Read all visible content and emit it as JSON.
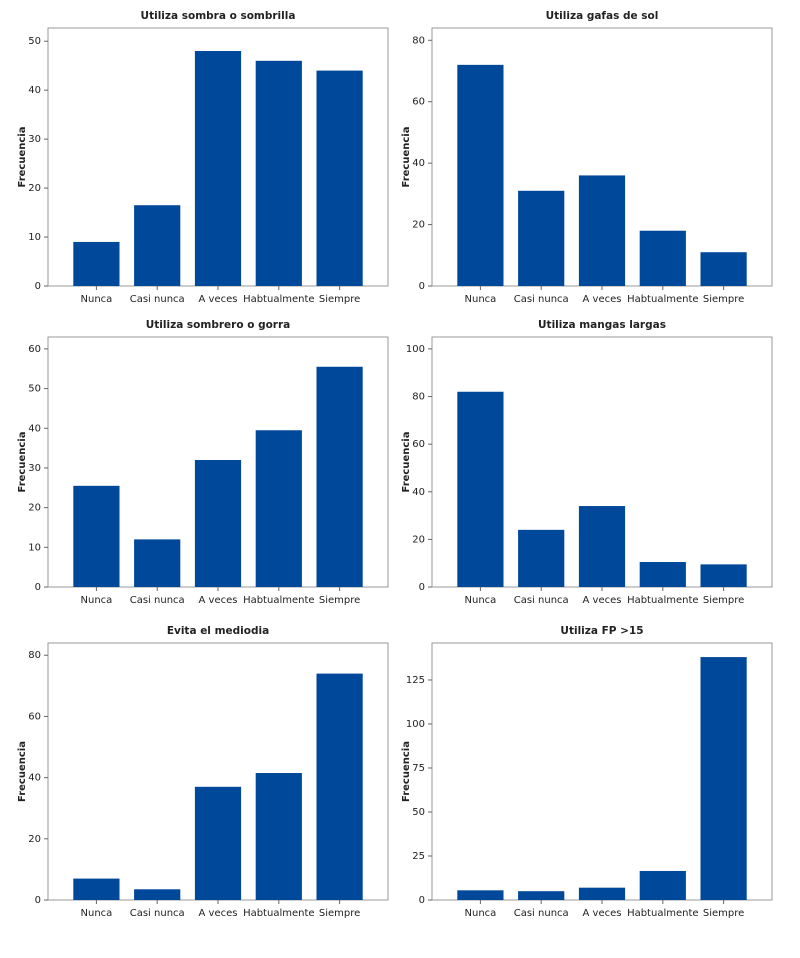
{
  "chart_data": [
    {
      "type": "bar",
      "title": "Utiliza sombra o sombrilla",
      "y_label": "Frecuencia",
      "color": "#00489a",
      "categories": [
        "Nunca",
        "Casi nunca",
        "A veces",
        "Habtualmente",
        "Siempre"
      ],
      "values": [
        9,
        16.5,
        48,
        46,
        44
      ],
      "ylim": [
        0,
        52.7
      ],
      "yticks": [
        0,
        10,
        20,
        30,
        40,
        50
      ]
    },
    {
      "type": "bar",
      "title": "Utiliza gafas de sol",
      "y_label": "Frecuencia",
      "color": "#00489a",
      "categories": [
        "Nunca",
        "Casi nunca",
        "A veces",
        "Habtualmente",
        "Siempre"
      ],
      "values": [
        72,
        31,
        36,
        18,
        11
      ],
      "ylim": [
        0,
        84
      ],
      "yticks": [
        0,
        20,
        40,
        60,
        80
      ]
    },
    {
      "type": "bar",
      "title": "Utiliza sombrero o gorra",
      "y_label": "Frecuencia",
      "color": "#00489a",
      "categories": [
        "Nunca",
        "Casi nunca",
        "A veces",
        "Habtualmente",
        "Siempre"
      ],
      "values": [
        25.5,
        12,
        32,
        39.5,
        55.5
      ],
      "ylim": [
        0,
        63
      ],
      "yticks": [
        0,
        10,
        20,
        30,
        40,
        50,
        60
      ]
    },
    {
      "type": "bar",
      "title": "Utiliza mangas largas",
      "y_label": "Frecuencia",
      "color": "#00489a",
      "categories": [
        "Nunca",
        "Casi nunca",
        "A veces",
        "Habtualmente",
        "Siempre"
      ],
      "values": [
        82,
        24,
        34,
        10.5,
        9.5
      ],
      "ylim": [
        0,
        105
      ],
      "yticks": [
        0,
        20,
        40,
        60,
        80,
        100
      ]
    },
    {
      "type": "bar",
      "title": "Evita el mediodia",
      "y_label": "Frecuencia",
      "color": "#00489a",
      "categories": [
        "Nunca",
        "Casi nunca",
        "A veces",
        "Habtualmente",
        "Siempre"
      ],
      "values": [
        7,
        3.5,
        37,
        41.5,
        74
      ],
      "ylim": [
        0,
        84
      ],
      "yticks": [
        0,
        20,
        40,
        60,
        80
      ]
    },
    {
      "type": "bar",
      "title": "Utiliza FP >15",
      "y_label": "Frecuencia",
      "color": "#00489a",
      "categories": [
        "Nunca",
        "Casi nunca",
        "A veces",
        "Habtualmente",
        "Siempre"
      ],
      "values": [
        5.5,
        5,
        7,
        16.5,
        138
      ],
      "ylim": [
        0,
        146
      ],
      "yticks": [
        0,
        25,
        50,
        75,
        100,
        125
      ]
    }
  ]
}
